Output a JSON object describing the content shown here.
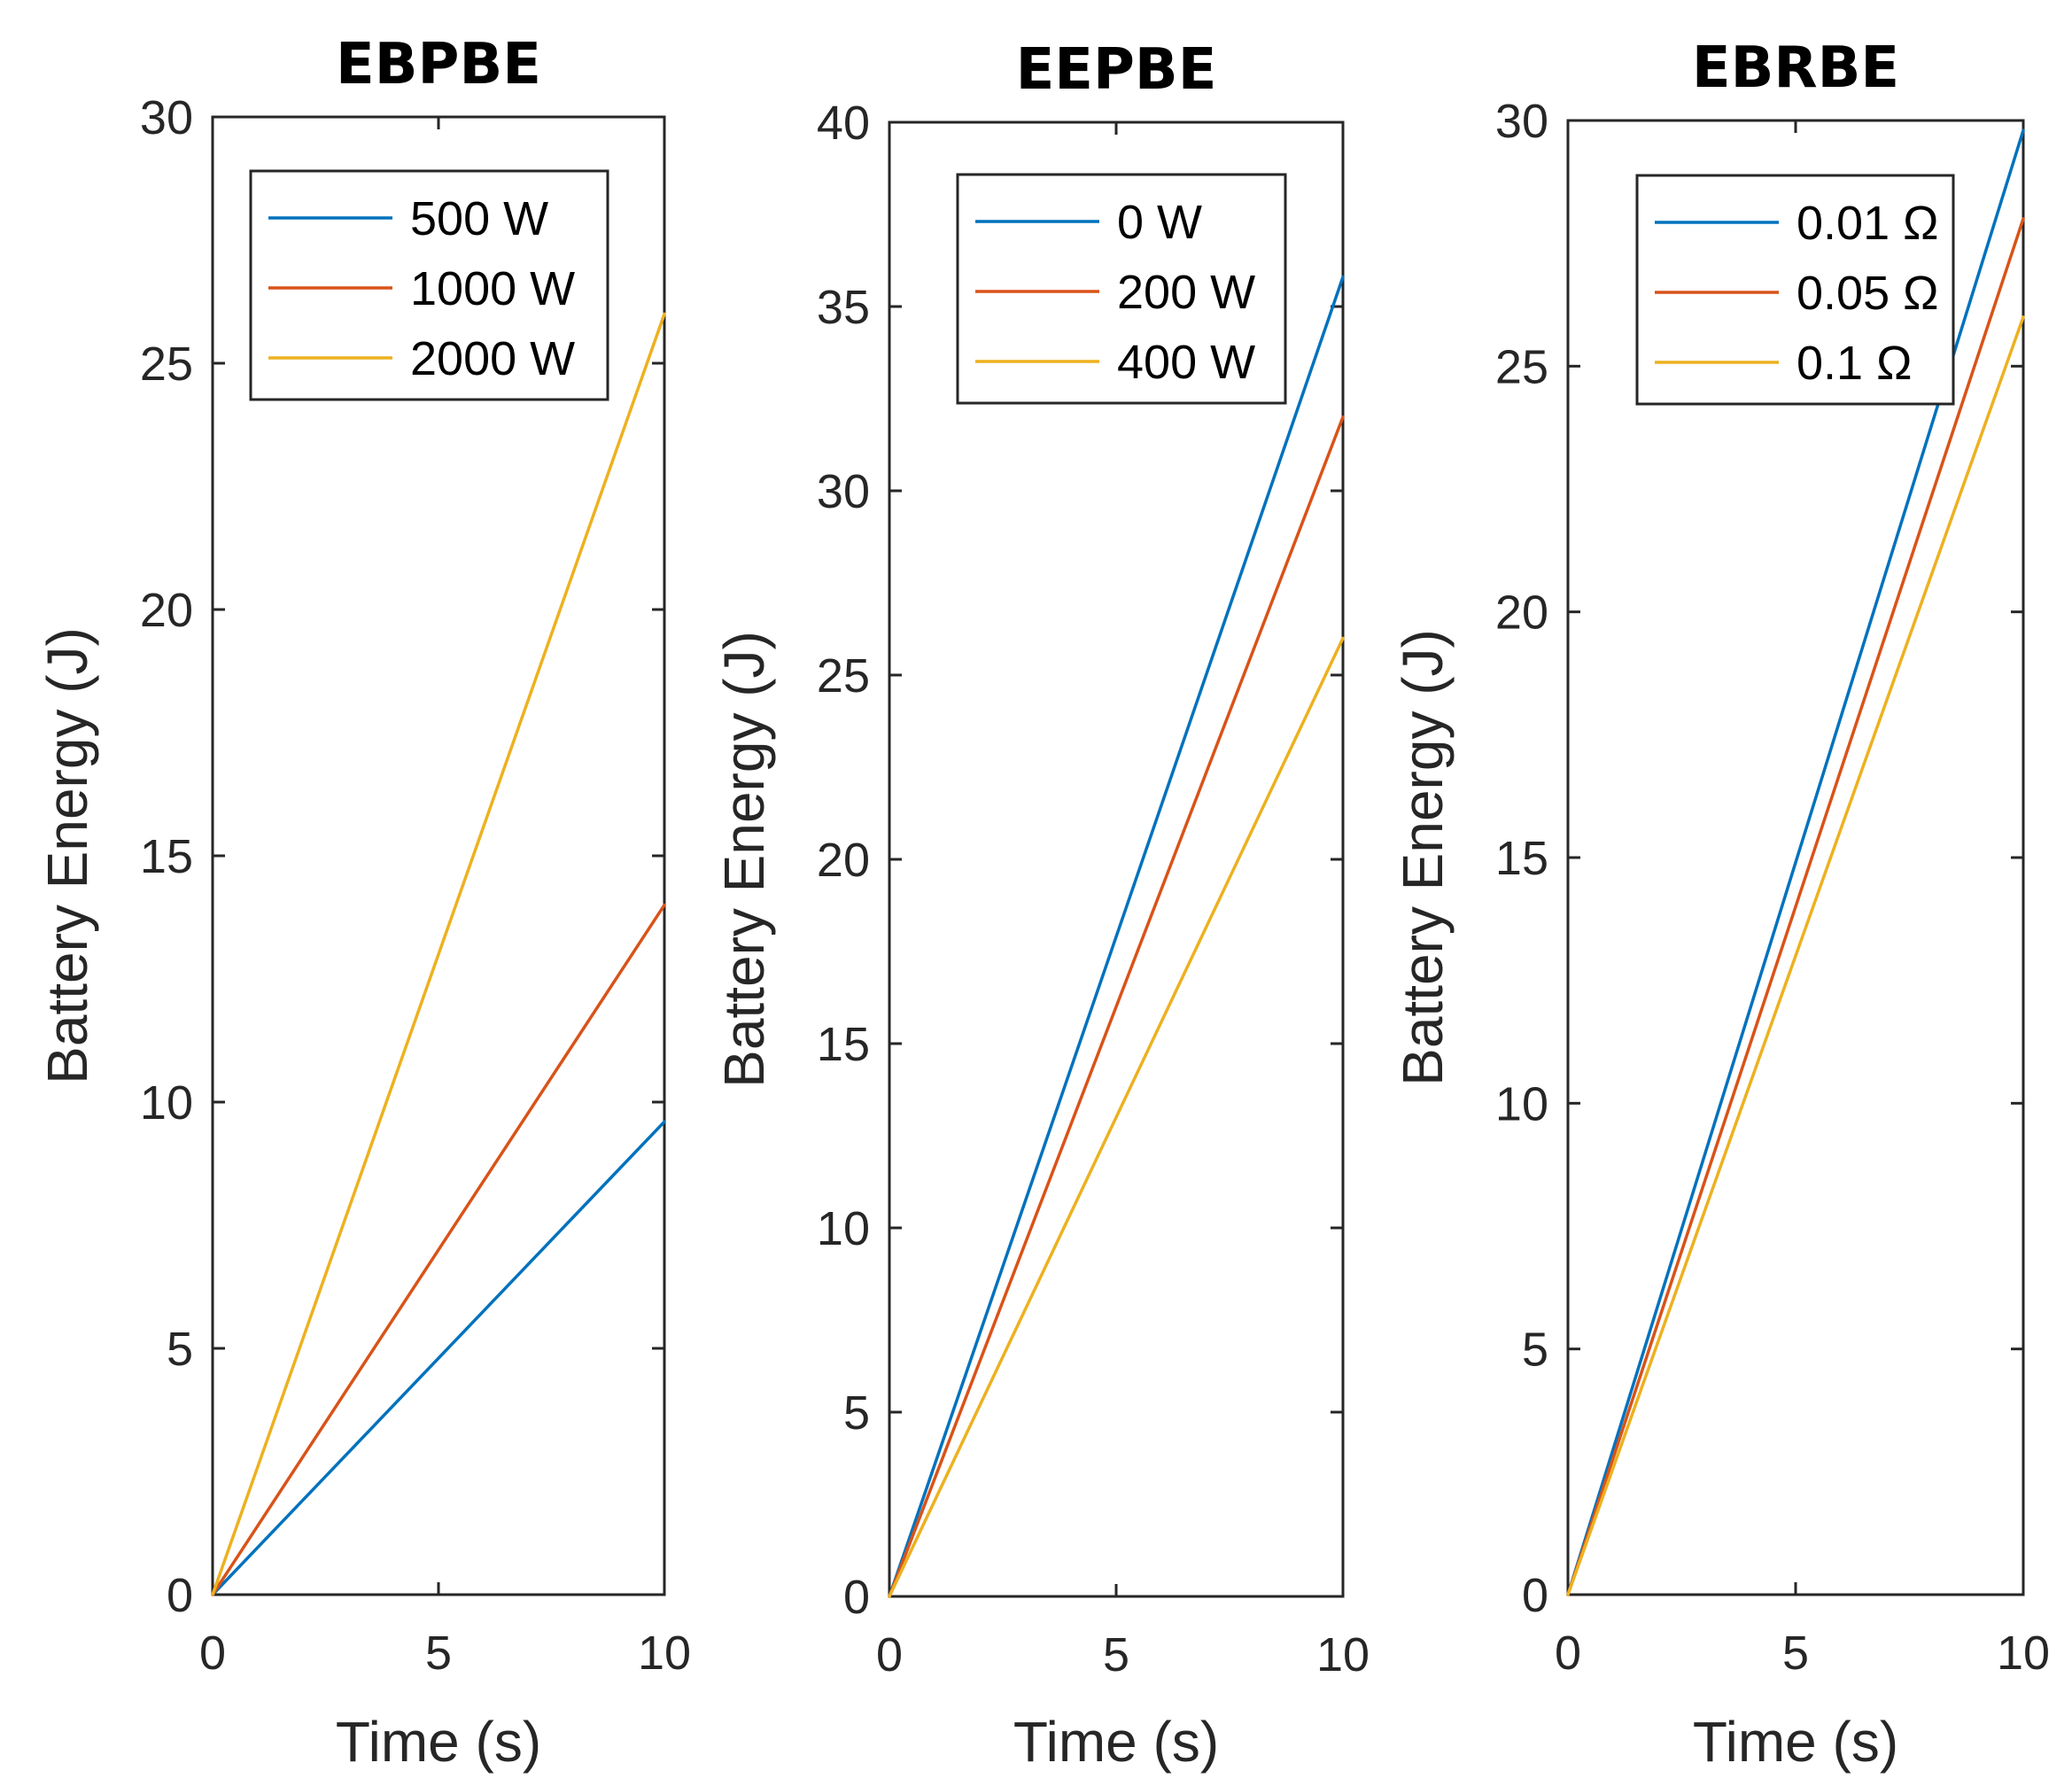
{
  "chart_data": [
    {
      "type": "line",
      "title": "EBPBE",
      "xlabel": "Time (s)",
      "ylabel": "Battery Energy (J)",
      "xlim": [
        0,
        10
      ],
      "ylim": [
        0,
        30
      ],
      "xticks": [
        "0",
        "5",
        "10"
      ],
      "yticks": [
        "0",
        "5",
        "10",
        "15",
        "20",
        "25",
        "30"
      ],
      "legend_position": "top",
      "series": [
        {
          "name": "500 W",
          "x": [
            0,
            10
          ],
          "y": [
            0,
            9.6
          ],
          "color": "#0072BD"
        },
        {
          "name": "1000 W",
          "x": [
            0,
            10
          ],
          "y": [
            0,
            14.0
          ],
          "color": "#D95319"
        },
        {
          "name": "2000 W",
          "x": [
            0,
            10
          ],
          "y": [
            0,
            26.0
          ],
          "color": "#EDB120"
        }
      ]
    },
    {
      "type": "line",
      "title": "EEPBE",
      "xlabel": "Time (s)",
      "ylabel": "Battery Energy (J)",
      "xlim": [
        0,
        10
      ],
      "ylim": [
        0,
        40
      ],
      "xticks": [
        "0",
        "5",
        "10"
      ],
      "yticks": [
        "0",
        "5",
        "10",
        "15",
        "20",
        "25",
        "30",
        "35",
        "40"
      ],
      "legend_position": "top",
      "series": [
        {
          "name": "0 W",
          "x": [
            0,
            10
          ],
          "y": [
            0,
            35.8
          ],
          "color": "#0072BD"
        },
        {
          "name": "200 W",
          "x": [
            0,
            10
          ],
          "y": [
            0,
            32.0
          ],
          "color": "#D95319"
        },
        {
          "name": "400 W",
          "x": [
            0,
            10
          ],
          "y": [
            0,
            26.0
          ],
          "color": "#EDB120"
        }
      ]
    },
    {
      "type": "line",
      "title": "EBRBE",
      "xlabel": "Time (s)",
      "ylabel": "Battery Energy (J)",
      "xlim": [
        0,
        10
      ],
      "ylim": [
        0,
        30
      ],
      "xticks": [
        "0",
        "5",
        "10"
      ],
      "yticks": [
        "0",
        "5",
        "10",
        "15",
        "20",
        "25",
        "30"
      ],
      "legend_position": "top-right",
      "series": [
        {
          "name": "0.01 Ω",
          "x": [
            0,
            10
          ],
          "y": [
            0,
            29.8
          ],
          "color": "#0072BD"
        },
        {
          "name": "0.05 Ω",
          "x": [
            0,
            10
          ],
          "y": [
            0,
            28.0
          ],
          "color": "#D95319"
        },
        {
          "name": "0.1 Ω",
          "x": [
            0,
            10
          ],
          "y": [
            0,
            26.0
          ],
          "color": "#EDB120"
        }
      ]
    }
  ]
}
